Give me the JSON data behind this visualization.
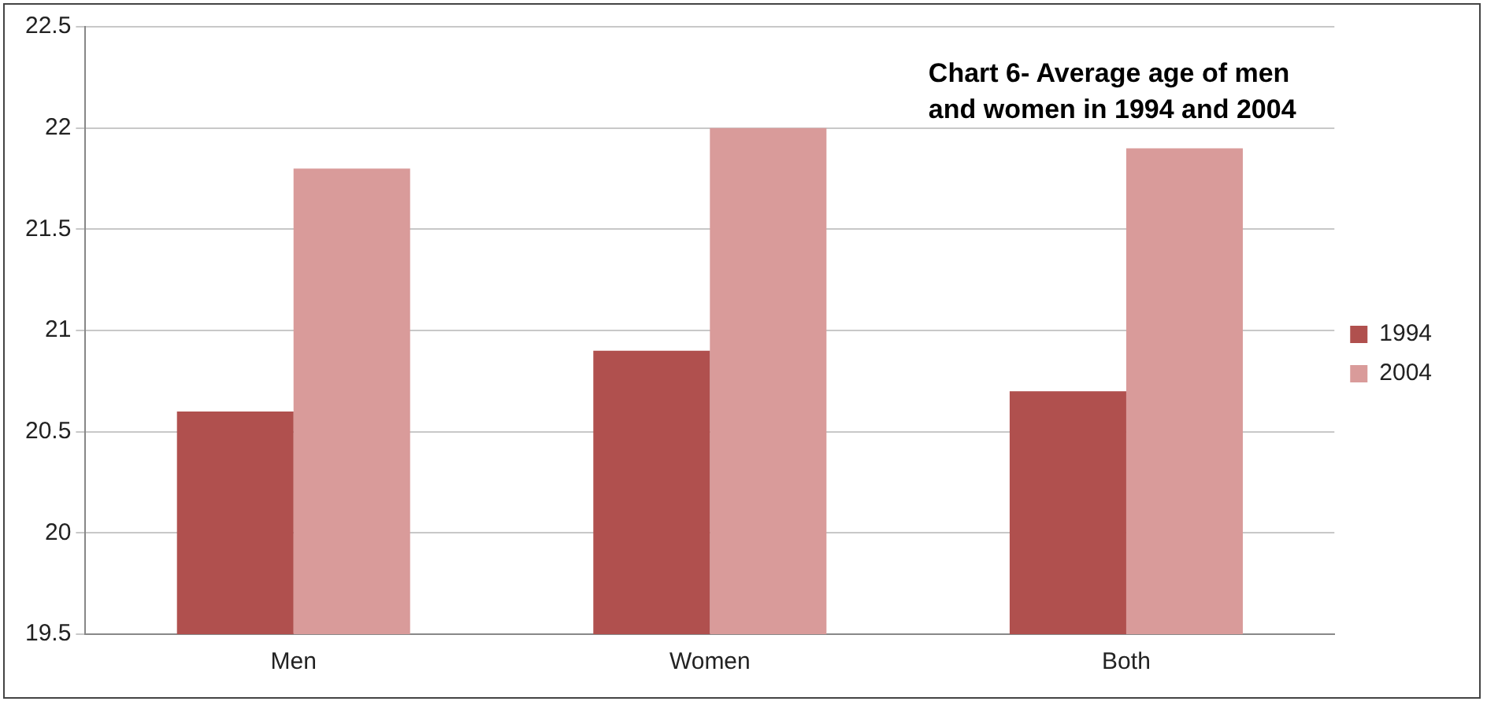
{
  "chart_data": {
    "type": "bar",
    "title": "Chart 6- Average age of men and women in 1994 and 2004",
    "categories": [
      "Men",
      "Women",
      "Both"
    ],
    "series": [
      {
        "name": "1994",
        "color": "#b0504e",
        "values": [
          20.6,
          20.9,
          20.7
        ]
      },
      {
        "name": "2004",
        "color": "#d99b9a",
        "values": [
          21.8,
          22.0,
          21.9
        ]
      }
    ],
    "ylim": [
      19.5,
      22.5
    ],
    "yticks": [
      19.5,
      20,
      20.5,
      21,
      21.5,
      22,
      22.5
    ],
    "grid": "y",
    "legend": "right"
  }
}
